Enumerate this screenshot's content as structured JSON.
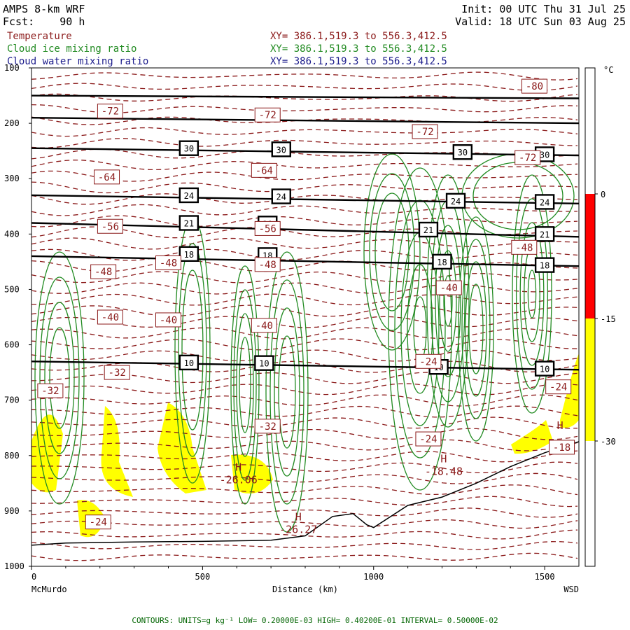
{
  "header": {
    "model": "AMPS 8-km WRF",
    "forecast_label": "Fcst:",
    "forecast_hours": "90 h",
    "init": "Init: 00 UTC Thu 31 Jul 25",
    "valid": "Valid: 18 UTC Sun 03 Aug 25"
  },
  "legend": [
    {
      "name": "Temperature",
      "xy": "XY= 386.1,519.3 to 556.3,412.5",
      "color": "#8b1a1a"
    },
    {
      "name": "Cloud ice mixing ratio",
      "xy": "XY= 386.1,519.3 to 556.3,412.5",
      "color": "#228b22"
    },
    {
      "name": "Cloud water mixing ratio",
      "xy": "XY= 386.1,519.3 to 556.3,412.5",
      "color": "#1c1c8c"
    }
  ],
  "footer": "CONTOURS:  UNITS=g kg⁻¹  LOW= 0.20000E-03  HIGH= 0.40200E-01  INTERVAL=  0.50000E-02",
  "colorbar": {
    "unit": "°C",
    "levels": [
      {
        "label": "0"
      },
      {
        "label": "-15"
      },
      {
        "label": "-30"
      }
    ],
    "colors": {
      "warm": "#ff0000",
      "mid": "#ffff00",
      "cold": "#ffffff"
    }
  },
  "chart_data": {
    "type": "cross-section",
    "xlabel": "Distance (km)",
    "ylabel": "",
    "xlim": [
      0,
      1600
    ],
    "ylim": [
      1000,
      100
    ],
    "x_ticks": [
      "0",
      "500",
      "1000",
      "1500"
    ],
    "y_ticks": [
      "100",
      "200",
      "300",
      "400",
      "500",
      "600",
      "700",
      "800",
      "900",
      "1000"
    ],
    "x_tick_values": [
      0,
      500,
      1000,
      1500
    ],
    "y_tick_values": [
      100,
      200,
      300,
      400,
      500,
      600,
      700,
      800,
      900,
      1000
    ],
    "endpoints": {
      "left": "McMurdo",
      "right": "WSD"
    },
    "wind_isotachs": [
      {
        "label": "10",
        "x": [
          0,
          1600
        ],
        "y": [
          630,
          645
        ]
      },
      {
        "label": "18",
        "x": [
          0,
          1600
        ],
        "y": [
          440,
          458
        ]
      },
      {
        "label": "21",
        "x": [
          0,
          1600
        ],
        "y": [
          380,
          405
        ]
      },
      {
        "label": "24",
        "x": [
          0,
          1600
        ],
        "y": [
          330,
          345
        ]
      },
      {
        "label": "30",
        "x": [
          0,
          1600
        ],
        "y": [
          245,
          258
        ]
      },
      {
        "label": "",
        "x": [
          0,
          1600
        ],
        "y": [
          190,
          200
        ]
      },
      {
        "label": "",
        "x": [
          0,
          1600
        ],
        "y": [
          150,
          155
        ]
      }
    ],
    "isotach_label_boxes": [
      {
        "label": "30",
        "x": 460,
        "p": 245
      },
      {
        "label": "30",
        "x": 730,
        "p": 247
      },
      {
        "label": "30",
        "x": 1260,
        "p": 252
      },
      {
        "label": "30",
        "x": 1500,
        "p": 256
      },
      {
        "label": "24",
        "x": 460,
        "p": 330
      },
      {
        "label": "24",
        "x": 730,
        "p": 332
      },
      {
        "label": "24",
        "x": 1240,
        "p": 340
      },
      {
        "label": "24",
        "x": 1500,
        "p": 342
      },
      {
        "label": "21",
        "x": 460,
        "p": 380
      },
      {
        "label": "21",
        "x": 690,
        "p": 381
      },
      {
        "label": "21",
        "x": 1160,
        "p": 392
      },
      {
        "label": "21",
        "x": 1500,
        "p": 400
      },
      {
        "label": "18",
        "x": 460,
        "p": 436
      },
      {
        "label": "18",
        "x": 690,
        "p": 438
      },
      {
        "label": "18",
        "x": 1200,
        "p": 450
      },
      {
        "label": "18",
        "x": 1500,
        "p": 456
      },
      {
        "label": "10",
        "x": 460,
        "p": 632
      },
      {
        "label": "10",
        "x": 680,
        "p": 633
      },
      {
        "label": "10",
        "x": 1190,
        "p": 640
      },
      {
        "label": "10",
        "x": 1500,
        "p": 643
      }
    ],
    "temperature_labels": [
      {
        "label": "-80",
        "x": 1470,
        "p": 133
      },
      {
        "label": "-72",
        "x": 230,
        "p": 178
      },
      {
        "label": "-72",
        "x": 690,
        "p": 185
      },
      {
        "label": "-72",
        "x": 1150,
        "p": 215
      },
      {
        "label": "-72",
        "x": 1450,
        "p": 262
      },
      {
        "label": "-64",
        "x": 220,
        "p": 297
      },
      {
        "label": "-64",
        "x": 680,
        "p": 285
      },
      {
        "label": "-56",
        "x": 230,
        "p": 386
      },
      {
        "label": "-56",
        "x": 690,
        "p": 390
      },
      {
        "label": "-48",
        "x": 1440,
        "p": 424
      },
      {
        "label": "-48",
        "x": 210,
        "p": 468
      },
      {
        "label": "-48",
        "x": 400,
        "p": 452
      },
      {
        "label": "-48",
        "x": 690,
        "p": 455
      },
      {
        "label": "-40",
        "x": 1220,
        "p": 497
      },
      {
        "label": "-40",
        "x": 230,
        "p": 550
      },
      {
        "label": "-40",
        "x": 400,
        "p": 555
      },
      {
        "label": "-40",
        "x": 680,
        "p": 565
      },
      {
        "label": "-32",
        "x": 250,
        "p": 650
      },
      {
        "label": "-32",
        "x": 55,
        "p": 683
      },
      {
        "label": "-32",
        "x": 690,
        "p": 747
      },
      {
        "label": "-24",
        "x": 1160,
        "p": 630
      },
      {
        "label": "-24",
        "x": 1540,
        "p": 676
      },
      {
        "label": "-24",
        "x": 1160,
        "p": 770
      },
      {
        "label": "-24",
        "x": 195,
        "p": 920
      },
      {
        "label": "-18",
        "x": 1550,
        "p": 785
      }
    ],
    "extrema": [
      {
        "label": "H",
        "value": "-26.06",
        "x": 605,
        "p": 840
      },
      {
        "label": "H",
        "value": "-26.27",
        "x": 780,
        "p": 930
      },
      {
        "label": "H",
        "value": "-18.48",
        "x": 1205,
        "p": 825
      },
      {
        "label": "H",
        "value": "",
        "x": 1545,
        "p": 765
      }
    ],
    "terrain_surface": {
      "x": [
        0,
        100,
        300,
        500,
        700,
        800,
        880,
        940,
        980,
        1000,
        1100,
        1200,
        1300,
        1400,
        1500,
        1600
      ],
      "p": [
        962,
        958,
        956,
        955,
        953,
        945,
        910,
        905,
        925,
        930,
        890,
        875,
        850,
        820,
        795,
        775
      ]
    },
    "shading_regions_pressure_bounds": [
      {
        "range": "0 to -15 C",
        "color": "#ff0000"
      },
      {
        "range": "-15 to -30 C",
        "color": "#ffff00"
      }
    ]
  }
}
